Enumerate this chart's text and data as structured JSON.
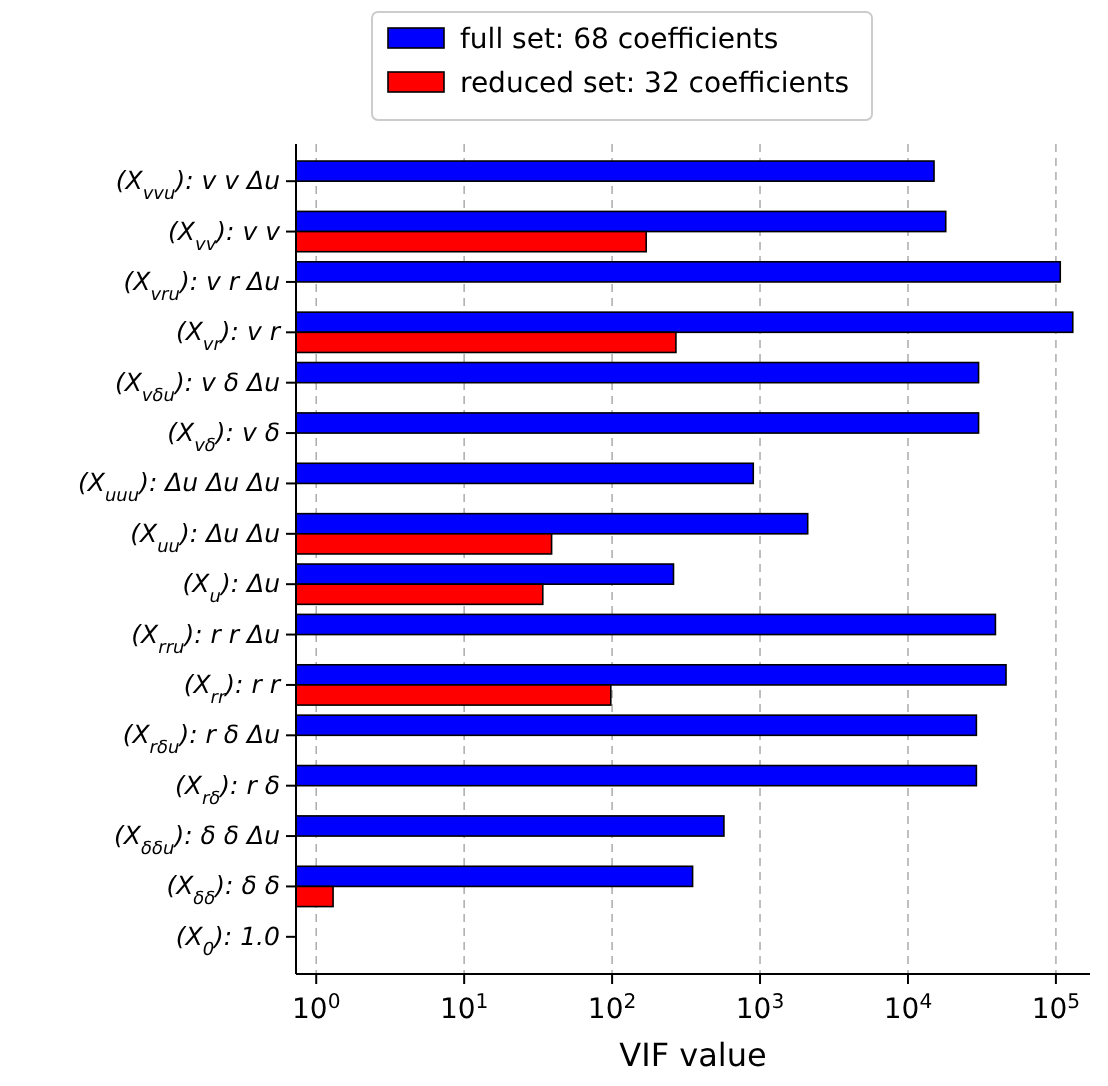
{
  "chart_data": {
    "type": "bar",
    "orientation": "horizontal",
    "xlabel": "VIF value",
    "log": "x",
    "grid": "x",
    "legend": "top",
    "categories": [
      "(X$_{vvu}$): v v Δu",
      "(X$_{vv}$): v v",
      "(X$_{vru}$): v r Δu",
      "(X$_{vr}$): v r",
      "(X$_{vδu}$): v δ Δu",
      "(X$_{vδ}$): v δ",
      "(X$_{uuu}$): Δu Δu Δu",
      "(X$_{uu}$): Δu Δu",
      "(X$_{u}$): Δu",
      "(X$_{rru}$): r r Δu",
      "(X$_{rr}$): r r",
      "(X$_{rδu}$): r δ Δu",
      "(X$_{rδ}$): r δ",
      "(X$_{δδu}$): δ δ Δu",
      "(X$_{δδ}$): δ δ",
      "(X$_{0}$): 1.0"
    ],
    "series": [
      {
        "name": "full set: 68 coefficients",
        "color": "#0000ff",
        "values": [
          15000,
          18000,
          107000,
          130000,
          30000,
          30000,
          900,
          2100,
          260,
          39000,
          46000,
          29000,
          29000,
          570,
          350,
          null
        ]
      },
      {
        "name": "reduced set: 32 coefficients",
        "color": "#ff0000",
        "values": [
          null,
          170,
          null,
          270,
          null,
          null,
          null,
          39,
          34,
          null,
          98,
          null,
          null,
          null,
          1.3,
          null
        ]
      }
    ],
    "xlim": [
      0.73,
      170000
    ],
    "xticks": [
      {
        "value": 1,
        "label": "10$^{0}$"
      },
      {
        "value": 10,
        "label": "10$^{1}$"
      },
      {
        "value": 100,
        "label": "10$^{2}$"
      },
      {
        "value": 1000,
        "label": "10$^{3}$"
      },
      {
        "value": 10000,
        "label": "10$^{4}$"
      },
      {
        "value": 100000,
        "label": "10$^{5}$"
      }
    ]
  }
}
